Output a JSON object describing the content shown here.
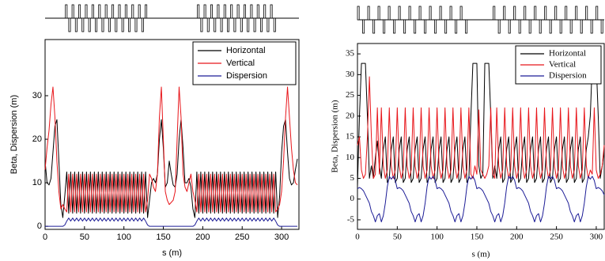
{
  "chart_data": [
    {
      "type": "line",
      "xlabel": "s (m)",
      "ylabel": "Beta, Dispersion (m)",
      "xlim": [
        0,
        322
      ],
      "ylim": [
        -0.7,
        42.9
      ],
      "xticks": [
        0,
        50,
        100,
        150,
        200,
        250,
        300
      ],
      "yticks": [
        0,
        10,
        20,
        30
      ],
      "legend": "upper right",
      "x": [
        0,
        2.5,
        5,
        7.5,
        10,
        12.5,
        15,
        17.5,
        20,
        22.5,
        25,
        27.5,
        30,
        32.5,
        35,
        37.5,
        40,
        42.5,
        45,
        47.5,
        50,
        52.5,
        55,
        57.5,
        60,
        62.5,
        65,
        67.5,
        70,
        72.5,
        75,
        77.5,
        80,
        82.5,
        85,
        87.5,
        90,
        92.5,
        95,
        97.5,
        100,
        102.5,
        105,
        107.5,
        110,
        112.5,
        115,
        117.5,
        120,
        122.5,
        125,
        127.5,
        130,
        132.5,
        135,
        137.5,
        140,
        142.5,
        145,
        147.5,
        150,
        152.5,
        155,
        157.5,
        160,
        162.5,
        165,
        167.5,
        170,
        172.5,
        175,
        177.5,
        180,
        182.5,
        185,
        187.5,
        190,
        192.5,
        195,
        197.5,
        200,
        202.5,
        205,
        207.5,
        210,
        212.5,
        215,
        217.5,
        220,
        222.5,
        225,
        227.5,
        230,
        232.5,
        235,
        237.5,
        240,
        242.5,
        245,
        247.5,
        250,
        252.5,
        255,
        257.5,
        260,
        262.5,
        265,
        267.5,
        270,
        272.5,
        275,
        277.5,
        280,
        282.5,
        285,
        287.5,
        290,
        292.5,
        295,
        297.5,
        300,
        302.5,
        305,
        307.5,
        310,
        312.5,
        315,
        317.5,
        320
      ],
      "series": [
        {
          "name": "Horizontal",
          "color": "#000000",
          "values": [
            15,
            10,
            9.5,
            11,
            17,
            23,
            24.5,
            15,
            5,
            2,
            7,
            12.5,
            3,
            12.5,
            3,
            12.5,
            3,
            12.5,
            3,
            12.5,
            3,
            12.5,
            3,
            12.5,
            3,
            12.5,
            3,
            12.5,
            3,
            12.5,
            3,
            12.5,
            3,
            12.5,
            3,
            12.5,
            3,
            12.5,
            3,
            12.5,
            3,
            12.5,
            3,
            12.5,
            3,
            12.5,
            3,
            12.5,
            3,
            12.5,
            3,
            12.5,
            2,
            6,
            10,
            11,
            10,
            12,
            20,
            24.5,
            18,
            9,
            10,
            15,
            12,
            9.5,
            9,
            12,
            20,
            24.5,
            18,
            10,
            10,
            11,
            9,
            4,
            2,
            12.5,
            3,
            12.5,
            3,
            12.5,
            3,
            12.5,
            3,
            12.5,
            3,
            12.5,
            3,
            12.5,
            3,
            12.5,
            3,
            12.5,
            3,
            12.5,
            3,
            12.5,
            3,
            12.5,
            3,
            12.5,
            3,
            12.5,
            3,
            12.5,
            3,
            12.5,
            3,
            12.5,
            3,
            12.5,
            3,
            12.5,
            3,
            12.5,
            3,
            12.5,
            2,
            7,
            17,
            23,
            24.5,
            17,
            11,
            9.5,
            10,
            13,
            15.5
          ]
        },
        {
          "name": "Vertical",
          "color": "#e8161b",
          "values": [
            13,
            18,
            22,
            28,
            32,
            25,
            15,
            8,
            4,
            5,
            4,
            3.3,
            12,
            3.3,
            12,
            3.3,
            12,
            3.3,
            12,
            3.3,
            12,
            3.3,
            12,
            3.3,
            12,
            3.3,
            12,
            3.3,
            12,
            3.3,
            12,
            3.3,
            12,
            3.3,
            12,
            3.3,
            12,
            3.3,
            12,
            3.3,
            12,
            3.3,
            12,
            3.3,
            12,
            3.3,
            12,
            3.3,
            12,
            3.3,
            12,
            3.3,
            6,
            12,
            11,
            9,
            8,
            12,
            25,
            32,
            20,
            8,
            6,
            5,
            5.5,
            6,
            8,
            20,
            32,
            25,
            12,
            9,
            8,
            10,
            12,
            8,
            6,
            3.3,
            12,
            3.3,
            12,
            3.3,
            12,
            3.3,
            12,
            3.3,
            12,
            3.3,
            12,
            3.3,
            12,
            3.3,
            12,
            3.3,
            12,
            3.3,
            12,
            3.3,
            12,
            3.3,
            12,
            3.3,
            12,
            3.3,
            12,
            3.3,
            12,
            3.3,
            12,
            3.3,
            12,
            3.3,
            12,
            3.3,
            12,
            3.3,
            12,
            3.3,
            4,
            5,
            8,
            15,
            25,
            32,
            25,
            18,
            13,
            10,
            9.5
          ]
        },
        {
          "name": "Dispersion",
          "color": "#1c1c96",
          "values": [
            0,
            0,
            0,
            0,
            0,
            0,
            0,
            0,
            0,
            0,
            0.3,
            1.2,
            1.9,
            1.2,
            1.9,
            1.2,
            1.9,
            1.2,
            1.9,
            1.2,
            1.9,
            1.2,
            1.9,
            1.2,
            1.9,
            1.2,
            1.9,
            1.2,
            1.9,
            1.2,
            1.9,
            1.2,
            1.9,
            1.2,
            1.9,
            1.2,
            1.9,
            1.2,
            1.9,
            1.2,
            1.9,
            1.2,
            1.9,
            1.2,
            1.9,
            1.2,
            1.9,
            1.2,
            1.9,
            1.2,
            1.9,
            1.2,
            0.3,
            0,
            0,
            0,
            0,
            0,
            0,
            0,
            0,
            0,
            0,
            0,
            0,
            0,
            0,
            0,
            0,
            0,
            0,
            0,
            0,
            0,
            0,
            0,
            0.3,
            1.2,
            1.9,
            1.2,
            1.9,
            1.2,
            1.9,
            1.2,
            1.9,
            1.2,
            1.9,
            1.2,
            1.9,
            1.2,
            1.9,
            1.2,
            1.9,
            1.2,
            1.9,
            1.2,
            1.9,
            1.2,
            1.9,
            1.2,
            1.9,
            1.2,
            1.9,
            1.2,
            1.9,
            1.2,
            1.9,
            1.2,
            1.9,
            1.2,
            1.9,
            1.2,
            1.9,
            1.2,
            1.9,
            1.2,
            1.9,
            1.2,
            0.3,
            0,
            0,
            0,
            0,
            0,
            0,
            0,
            0,
            0,
            0
          ]
        }
      ]
    },
    {
      "type": "line",
      "xlabel": "s (m)",
      "ylabel": "Beta, Dispersion (m)",
      "xlim": [
        0,
        310
      ],
      "ylim": [
        -7.3,
        37.5
      ],
      "xticks": [
        0,
        50,
        100,
        150,
        200,
        250,
        300
      ],
      "yticks": [
        -5,
        0,
        5,
        10,
        15,
        20,
        25,
        30,
        35
      ],
      "legend": "upper right",
      "x": [
        0,
        2.5,
        5,
        7.5,
        10,
        12.5,
        15,
        17.5,
        20,
        22.5,
        25,
        27.5,
        30,
        32.5,
        35,
        37.5,
        40,
        42.5,
        45,
        47.5,
        50,
        52.5,
        55,
        57.5,
        60,
        62.5,
        65,
        67.5,
        70,
        72.5,
        75,
        77.5,
        80,
        82.5,
        85,
        87.5,
        90,
        92.5,
        95,
        97.5,
        100,
        102.5,
        105,
        107.5,
        110,
        112.5,
        115,
        117.5,
        120,
        122.5,
        125,
        127.5,
        130,
        132.5,
        135,
        137.5,
        140,
        142.5,
        145,
        147.5,
        150,
        152.5,
        155,
        157.5,
        160,
        162.5,
        165,
        167.5,
        170,
        172.5,
        175,
        177.5,
        180,
        182.5,
        185,
        187.5,
        190,
        192.5,
        195,
        197.5,
        200,
        202.5,
        205,
        207.5,
        210,
        212.5,
        215,
        217.5,
        220,
        222.5,
        225,
        227.5,
        230,
        232.5,
        235,
        237.5,
        240,
        242.5,
        245,
        247.5,
        250,
        252.5,
        255,
        257.5,
        260,
        262.5,
        265,
        267.5,
        270,
        272.5,
        275,
        277.5,
        280,
        282.5,
        285,
        287.5,
        290,
        292.5,
        295,
        297.5,
        300,
        302.5,
        305,
        307.5,
        310
      ],
      "series": [
        {
          "name": "Horizontal",
          "color": "#000000",
          "values": [
            3,
            20,
            32.7,
            32.7,
            32.7,
            20,
            5,
            8,
            5,
            10,
            14,
            8,
            5,
            12,
            15,
            4,
            5,
            12,
            15,
            4,
            5,
            12,
            15,
            4,
            5,
            12,
            15,
            4,
            5,
            12,
            15,
            4,
            5,
            12,
            15,
            4,
            5,
            12,
            15,
            4,
            5,
            12,
            15,
            4,
            5,
            12,
            15,
            4,
            5,
            12,
            15,
            4,
            5,
            12,
            15,
            4,
            5,
            20,
            32.7,
            32.7,
            32.7,
            8,
            5,
            6,
            32.7,
            32.7,
            32.7,
            20,
            5,
            8,
            5,
            12,
            15,
            4,
            5,
            12,
            15,
            4,
            5,
            12,
            15,
            4,
            5,
            12,
            15,
            4,
            5,
            12,
            15,
            4,
            5,
            12,
            15,
            4,
            5,
            12,
            15,
            4,
            5,
            12,
            15,
            4,
            5,
            12,
            15,
            4,
            5,
            12,
            15,
            4,
            5,
            12,
            15,
            4,
            5,
            12,
            15,
            20,
            32.7,
            32.7,
            32.7,
            20,
            5,
            8,
            12
          ]
        },
        {
          "name": "Vertical",
          "color": "#e8161b",
          "values": [
            13,
            15,
            7,
            5,
            6,
            15,
            29.5,
            15,
            5,
            6,
            22,
            6,
            22,
            8,
            5,
            7,
            22,
            8,
            5,
            7,
            22,
            8,
            5,
            7,
            22,
            8,
            5,
            7,
            22,
            8,
            5,
            7,
            22,
            8,
            5,
            7,
            22,
            8,
            5,
            7,
            22,
            8,
            5,
            7,
            22,
            8,
            5,
            7,
            22,
            8,
            5,
            7,
            22,
            8,
            5,
            7,
            22,
            6,
            5,
            8,
            6,
            21.5,
            7,
            6,
            5,
            6,
            8,
            22,
            6,
            5,
            22,
            8,
            5,
            7,
            22,
            8,
            5,
            7,
            22,
            8,
            5,
            7,
            22,
            8,
            5,
            7,
            22,
            8,
            5,
            7,
            22,
            8,
            5,
            7,
            22,
            8,
            5,
            7,
            22,
            8,
            5,
            7,
            22,
            8,
            5,
            7,
            22,
            8,
            5,
            7,
            22,
            8,
            5,
            7,
            22,
            8,
            5,
            7,
            6,
            22,
            7,
            5,
            6,
            8,
            13
          ]
        },
        {
          "name": "Dispersion",
          "color": "#1c1c96",
          "values": [
            2.5,
            2.8,
            2.5,
            2,
            1,
            0,
            -1,
            -3,
            -4,
            -5.5,
            -4,
            -3.5,
            -5.5,
            -4,
            -1,
            3,
            5.5,
            4.8,
            5.5,
            4.5,
            2.5,
            2.8,
            2.5,
            2,
            1,
            0,
            -1,
            -3,
            -4,
            -5.5,
            -4,
            -3.5,
            -5.5,
            -4,
            -1,
            3,
            5.5,
            4.8,
            5.5,
            4.5,
            2.5,
            2.8,
            2.5,
            2,
            1,
            0,
            -1,
            -3,
            -4,
            -5.5,
            -4,
            -3.5,
            -5.5,
            -4,
            -1,
            3,
            5.5,
            4.8,
            5.5,
            4.5,
            2.5,
            2.8,
            2.5,
            2,
            1,
            0,
            -1,
            -3,
            -4,
            -5.5,
            -4,
            -3.5,
            -5.5,
            -4,
            -1,
            3,
            5.5,
            4.8,
            5.5,
            4.5,
            2.5,
            2.8,
            2.5,
            2,
            1,
            0,
            -1,
            -3,
            -4,
            -5.5,
            -4,
            -3.5,
            -5.5,
            -4,
            -1,
            3,
            5.5,
            4.8,
            5.5,
            4.5,
            2.5,
            2.8,
            2.5,
            2,
            1,
            0,
            -1,
            -3,
            -4,
            -5.5,
            -4,
            -3.5,
            -5.5,
            -4,
            -1,
            3,
            5.5,
            4.8,
            5.5,
            4.5,
            2.5,
            2.8,
            2.5,
            2,
            1
          ]
        }
      ]
    }
  ]
}
